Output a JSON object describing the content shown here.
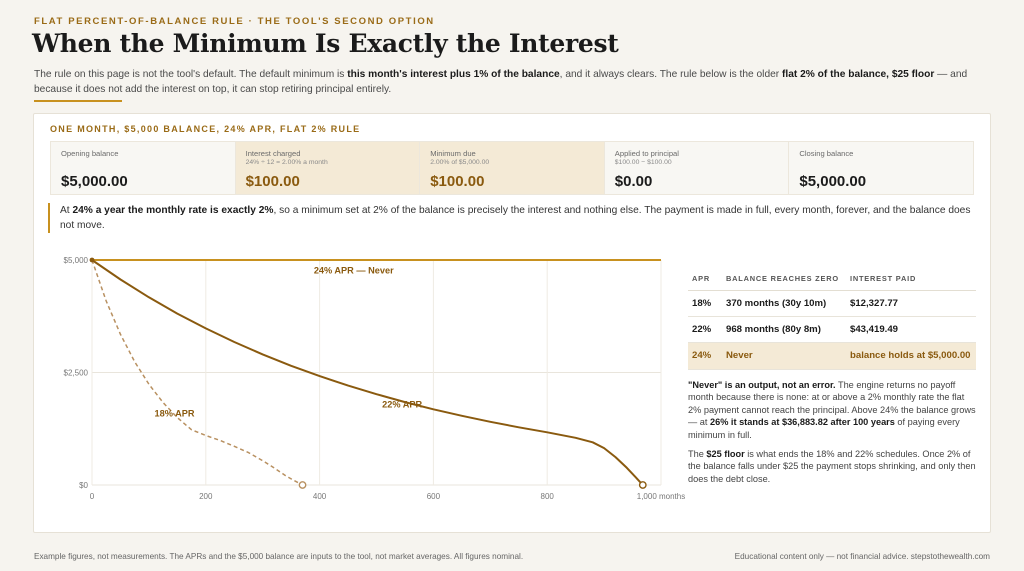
{
  "header": {
    "eyebrow": "FLAT PERCENT-OF-BALANCE RULE · THE TOOL'S SECOND OPTION",
    "title": "When the Minimum Is Exactly the Interest",
    "intro_1": "The rule on this page is not the tool's default. The default minimum is ",
    "intro_b1": "this month's interest plus 1% of the balance",
    "intro_2": ", and it always clears. The rule below is the older ",
    "intro_b2": "flat 2% of the balance, $25 floor",
    "intro_3": " — and because it does not add the interest on top, it can stop retiring principal entirely."
  },
  "card": {
    "title": "ONE MONTH, $5,000 BALANCE, 24% APR, FLAT 2% RULE",
    "stats": [
      {
        "label": "Opening balance",
        "sub": "",
        "value": "$5,000.00"
      },
      {
        "label": "Interest charged",
        "sub": "24% ÷ 12 = 2.00% a month",
        "value": "$100.00"
      },
      {
        "label": "Minimum due",
        "sub": "2.00% of $5,000.00",
        "value": "$100.00"
      },
      {
        "label": "Applied to principal",
        "sub": "$100.00 − $100.00",
        "value": "$0.00"
      },
      {
        "label": "Closing balance",
        "sub": "",
        "value": "$5,000.00"
      }
    ],
    "note_1": "At ",
    "note_b": "24% a year the monthly rate is exactly 2%",
    "note_2": ", so a minimum set at 2% of the balance is precisely the interest and nothing else. The payment is made in full, every month, forever, and the balance does not move."
  },
  "table": {
    "headers": [
      "APR",
      "BALANCE REACHES ZERO",
      "INTEREST PAID"
    ],
    "rows": [
      [
        "18%",
        "370 months  (30y 10m)",
        "$12,327.77"
      ],
      [
        "22%",
        "968 months  (80y 8m)",
        "$43,419.49"
      ],
      [
        "24%",
        "Never",
        "balance holds at $5,000.00"
      ]
    ]
  },
  "side": {
    "p1_b": "\"Never\" is an output, not an error.",
    "p1_1": " The engine returns no payoff month because there is none: at or above a 2% monthly rate the flat 2% payment cannot reach the principal. Above 24% the balance grows — at ",
    "p1_b2": "26% it stands at $36,883.82 after 100 years",
    "p1_2": " of paying every minimum in full.",
    "p2_1": "The ",
    "p2_b": "$25 floor",
    "p2_2": " is what ends the 18% and 22% schedules. Once 2% of the balance falls under $25 the payment stops shrinking, and only then does the debt close."
  },
  "footer": {
    "left": "Example figures, not measurements. The APRs and the $5,000 balance are inputs to the tool, not market averages. All figures nominal.",
    "right": "Educational content only — not financial advice.  stepstothewealth.com"
  },
  "chart_data": {
    "type": "line",
    "title": "",
    "xlabel": "",
    "ylabel": "",
    "xlim": [
      0,
      1000
    ],
    "ylim": [
      0,
      5000
    ],
    "x_ticks": [
      0,
      200,
      400,
      600,
      800,
      1000
    ],
    "x_tick_labels": [
      "0",
      "200",
      "400",
      "600",
      "800",
      "1,000 months"
    ],
    "y_ticks": [
      0,
      2500,
      5000
    ],
    "y_tick_labels": [
      "$0",
      "$2,500",
      "$5,000"
    ],
    "grid": true,
    "series": [
      {
        "name": "24% APR — Never",
        "color": "#c8911f",
        "dashed": false,
        "x": [
          0,
          1000
        ],
        "y": [
          5000,
          5000
        ]
      },
      {
        "name": "22% APR",
        "color": "#8a5a0f",
        "dashed": false,
        "x": [
          0,
          50,
          100,
          150,
          200,
          250,
          300,
          350,
          400,
          450,
          500,
          550,
          600,
          650,
          700,
          750,
          800,
          850,
          880,
          900,
          920,
          940,
          955,
          968
        ],
        "y": [
          5000,
          4566,
          4170,
          3809,
          3479,
          3177,
          2902,
          2650,
          2420,
          2210,
          2018,
          1843,
          1683,
          1537,
          1404,
          1282,
          1171,
          1050,
          950,
          820,
          620,
          380,
          180,
          0
        ],
        "end_marker": true
      },
      {
        "name": "18% APR",
        "color": "#b89060",
        "dashed": true,
        "x": [
          0,
          25,
          50,
          75,
          100,
          125,
          150,
          175,
          200,
          225,
          250,
          275,
          300,
          320,
          340,
          355,
          370
        ],
        "y": [
          5000,
          4090,
          3346,
          2737,
          2239,
          1832,
          1498,
          1226,
          1100,
          990,
          860,
          720,
          540,
          380,
          210,
          100,
          0
        ],
        "end_marker": true
      }
    ],
    "annotations": [
      {
        "text": "24% APR — Never",
        "x": 460,
        "y": 4700
      },
      {
        "text": "22% APR",
        "x": 545,
        "y": 1720
      },
      {
        "text": "18% APR",
        "x": 145,
        "y": 1520
      }
    ]
  }
}
